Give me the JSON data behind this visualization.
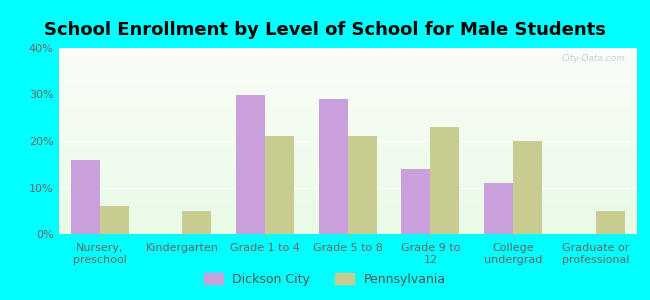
{
  "title": "School Enrollment by Level of School for Male Students",
  "categories": [
    "Nursery,\npreschool",
    "Kindergarten",
    "Grade 1 to 4",
    "Grade 5 to 8",
    "Grade 9 to\n12",
    "College\nundergrad",
    "Graduate or\nprofessional"
  ],
  "dickson_city": [
    16,
    0,
    30,
    29,
    14,
    11,
    0
  ],
  "pennsylvania": [
    6,
    5,
    21,
    21,
    23,
    20,
    5
  ],
  "dickson_color": "#c9a0dc",
  "pennsylvania_color": "#c8cc90",
  "background_outer": "#00FFFF",
  "ylim": [
    0,
    40
  ],
  "yticks": [
    0,
    10,
    20,
    30,
    40
  ],
  "bar_width": 0.35,
  "legend_labels": [
    "Dickson City",
    "Pennsylvania"
  ],
  "title_fontsize": 13,
  "tick_fontsize": 8
}
